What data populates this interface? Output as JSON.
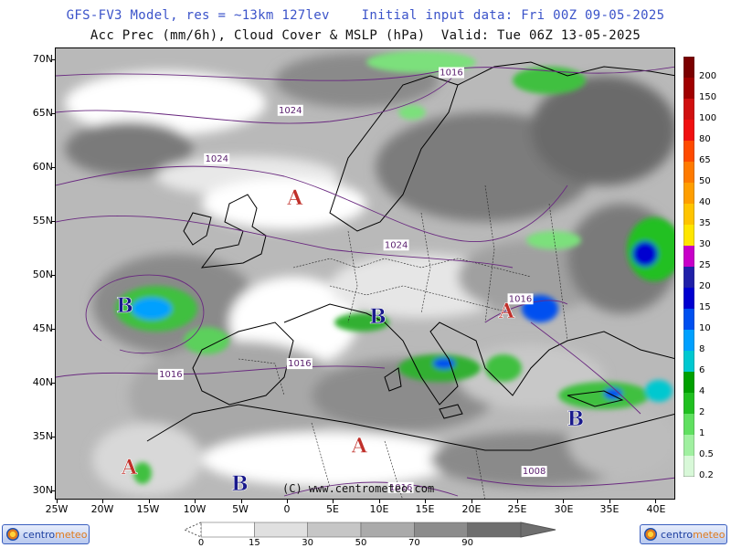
{
  "header": {
    "line1": "GFS-FV3 Model, res = ~13km 127lev    Initial input data: Fri 00Z 09-05-2025",
    "line2": "Acc Prec (mm/6h), Cloud Cover & MSLP (hPa)  Valid: Tue 06Z 13-05-2025"
  },
  "axes": {
    "latitudes": [
      "70N",
      "65N",
      "60N",
      "55N",
      "50N",
      "45N",
      "40N",
      "35N",
      "30N"
    ],
    "longitudes": [
      "25W",
      "20W",
      "15W",
      "10W",
      "5W",
      "0",
      "5E",
      "10E",
      "15E",
      "20E",
      "25E",
      "30E",
      "35E",
      "40E"
    ]
  },
  "precip_scale": {
    "labels": [
      "200",
      "150",
      "100",
      "80",
      "65",
      "50",
      "40",
      "35",
      "30",
      "25",
      "20",
      "15",
      "10",
      "8",
      "6",
      "4",
      "2",
      "1",
      "0.5",
      "0.2"
    ],
    "colors": [
      "#7a0000",
      "#a00000",
      "#d01010",
      "#f01010",
      "#ff4a00",
      "#ff7a00",
      "#ff9e00",
      "#ffc400",
      "#ffe600",
      "#c800c8",
      "#2020a8",
      "#0000d0",
      "#0050f0",
      "#00a0ff",
      "#00c8d0",
      "#00a000",
      "#20c020",
      "#60e060",
      "#a0f0a0",
      "#d8f8d8"
    ]
  },
  "cloud_scale": {
    "labels": [
      "0",
      "15",
      "30",
      "50",
      "70",
      "90"
    ],
    "colors": [
      "#ffffff",
      "#e0e0e0",
      "#c6c6c6",
      "#aaaaaa",
      "#8c8c8c",
      "#6e6e6e"
    ]
  },
  "pressure_centers": [
    {
      "letter": "A",
      "type": "high",
      "lon": 1,
      "lat": 56.5
    },
    {
      "letter": "B",
      "type": "low",
      "lon": -17.5,
      "lat": 46.5
    },
    {
      "letter": "B",
      "type": "low",
      "lon": 10,
      "lat": 45.5
    },
    {
      "letter": "A",
      "type": "high",
      "lon": 24,
      "lat": 46
    },
    {
      "letter": "B",
      "type": "low",
      "lon": 31.5,
      "lat": 36
    },
    {
      "letter": "A",
      "type": "high",
      "lon": 8,
      "lat": 33.5
    },
    {
      "letter": "A",
      "type": "high",
      "lon": -17,
      "lat": 31.5
    },
    {
      "letter": "B",
      "type": "low",
      "lon": -5,
      "lat": 30
    }
  ],
  "isobar_labels": [
    {
      "text": "1016",
      "lon": 18,
      "lat": 68.5
    },
    {
      "text": "1024",
      "lon": 0.5,
      "lat": 65
    },
    {
      "text": "1024",
      "lon": -7.5,
      "lat": 60.5
    },
    {
      "text": "1024",
      "lon": 12,
      "lat": 52.5
    },
    {
      "text": "1016",
      "lon": 25.5,
      "lat": 47.5
    },
    {
      "text": "1016",
      "lon": -12.5,
      "lat": 40.5
    },
    {
      "text": "1016",
      "lon": 1.5,
      "lat": 41.5
    },
    {
      "text": "1008",
      "lon": 27,
      "lat": 31.5
    },
    {
      "text": "1016",
      "lon": 12.5,
      "lat": 30
    }
  ],
  "copyright": "(C) www.centrometeo.com",
  "logo": {
    "part1": "centro",
    "part2": "meteo"
  },
  "colors": {
    "title_blue": "#3b53c9",
    "high": "#c0302a",
    "low": "#1a1a8c",
    "isobar": "#5a1f6e"
  }
}
